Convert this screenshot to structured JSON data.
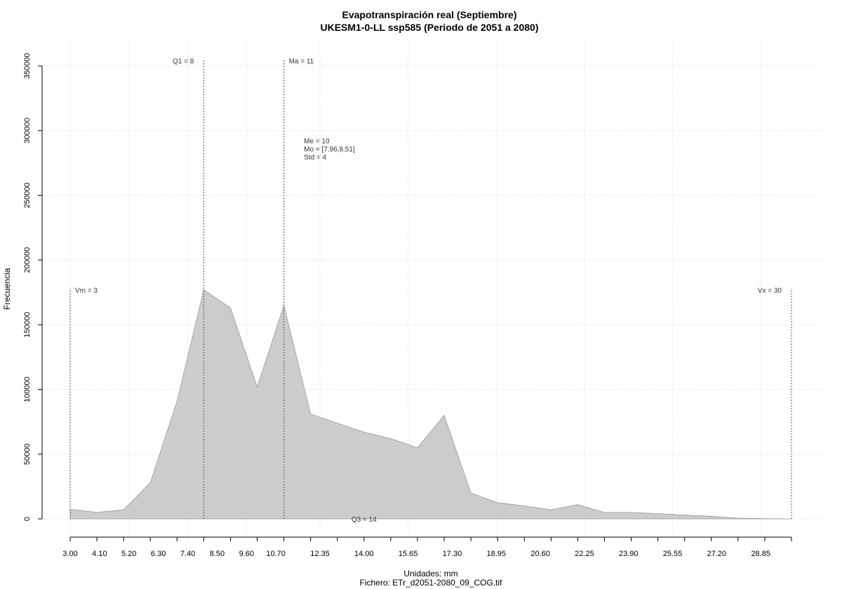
{
  "chart_data": {
    "type": "area",
    "title": "Evapotranspiración real (Septiembre)",
    "subtitle": "UKESM1-0-LL ssp585 (Periodo de 2051 a 2080)",
    "xlabel": "Unidades: mm",
    "file_label": "Fichero: ETr_d2051-2080_09_COG.tif",
    "ylabel": "Frecuencia",
    "xlim": [
      3,
      30
    ],
    "ylim": [
      0,
      350000
    ],
    "grid": true,
    "fill_color": "#cccccc",
    "line_color": "#999999",
    "x_tick_labels": [
      "3.00",
      "4.10",
      "5.20",
      "6.30",
      "7.40",
      "8.50",
      "9.60",
      "10.70",
      "12.35",
      "14.00",
      "15.65",
      "17.30",
      "18.95",
      "20.60",
      "22.25",
      "23.90",
      "25.55",
      "27.20",
      "28.85"
    ],
    "x_ticks_count": 28,
    "y_ticks": [
      0,
      50000,
      100000,
      150000,
      200000,
      250000,
      300000,
      350000
    ],
    "x": [
      3,
      4,
      5,
      6,
      7,
      8,
      9,
      10,
      11,
      12,
      13,
      14,
      15,
      16,
      17,
      18,
      19,
      20,
      21,
      22,
      23,
      24,
      25,
      26,
      27,
      28,
      29,
      30
    ],
    "values": [
      7500,
      5000,
      7000,
      28000,
      91000,
      177000,
      163000,
      102000,
      165000,
      81000,
      74000,
      67000,
      62000,
      55000,
      80000,
      20000,
      12500,
      10000,
      7000,
      11000,
      5000,
      5000,
      4000,
      3000,
      2000,
      500,
      200,
      0
    ],
    "vlines": [
      {
        "x": 3,
        "label": "Vm = 3",
        "top": 178000,
        "label_side": "right",
        "label_y": 177000
      },
      {
        "x": 8,
        "label": "Q1 = 8",
        "top": 355000,
        "label_side": "left",
        "label_y": 354000
      },
      {
        "x": 11,
        "label": "Ma = 11",
        "top": 355000,
        "label_side": "right",
        "label_y": 354000
      },
      {
        "x": 14,
        "label": "Q3 = 14",
        "top": 0,
        "label_side": "center",
        "label_y": 0
      },
      {
        "x": 30,
        "label": "Vx = 30",
        "top": 178000,
        "label_side": "left",
        "label_y": 177000
      }
    ],
    "stats": [
      "Me = 10",
      "Mo = [7.96,8.51]",
      "Std = 4"
    ],
    "stats_pos": {
      "x": 11.75,
      "y": 290000
    }
  }
}
